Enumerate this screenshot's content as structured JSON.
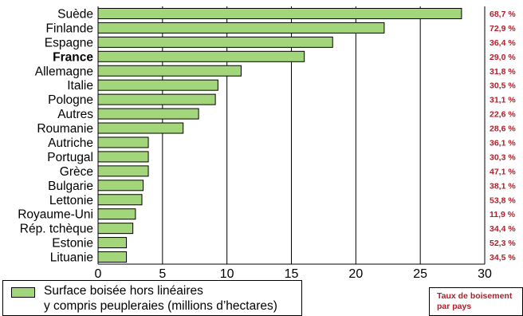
{
  "chart_data": {
    "type": "bar",
    "orientation": "horizontal",
    "categories": [
      "Suède",
      "Finlande",
      "Espagne",
      "France",
      "Allemagne",
      "Italie",
      "Pologne",
      "Autres",
      "Roumanie",
      "Autriche",
      "Portugal",
      "Grèce",
      "Bulgarie",
      "Lettonie",
      "Royaume-Uni",
      "Rép. tchèque",
      "Estonie",
      "Lituanie"
    ],
    "highlighted_category": "France",
    "values": [
      28.2,
      22.2,
      18.2,
      16.0,
      11.1,
      9.3,
      9.1,
      7.8,
      6.6,
      3.9,
      3.9,
      3.9,
      3.5,
      3.4,
      2.9,
      2.7,
      2.2,
      2.2
    ],
    "rates": [
      "68,7 %",
      "72,9 %",
      "36,4 %",
      "29,0 %",
      "31,8 %",
      "30,5 %",
      "31,1 %",
      "22,6 %",
      "28,6 %",
      "36,1 %",
      "30,3 %",
      "47,1 %",
      "38,1 %",
      "53,8 %",
      "11,9 %",
      "34,4 %",
      "52,3 %",
      "34,5 %"
    ],
    "xlim": [
      0,
      30
    ],
    "xticks": [
      "0",
      "5",
      "10",
      "15",
      "20",
      "25",
      "30"
    ],
    "grid": "vertical",
    "bar_color": "#a3d67a",
    "rate_color": "#b0202a"
  },
  "legend": {
    "series_label": "Surface boisée hors linéaires\ny compris peupleraies (millions d’hectares)",
    "rate_label": "Taux de boisement\npar pays"
  }
}
